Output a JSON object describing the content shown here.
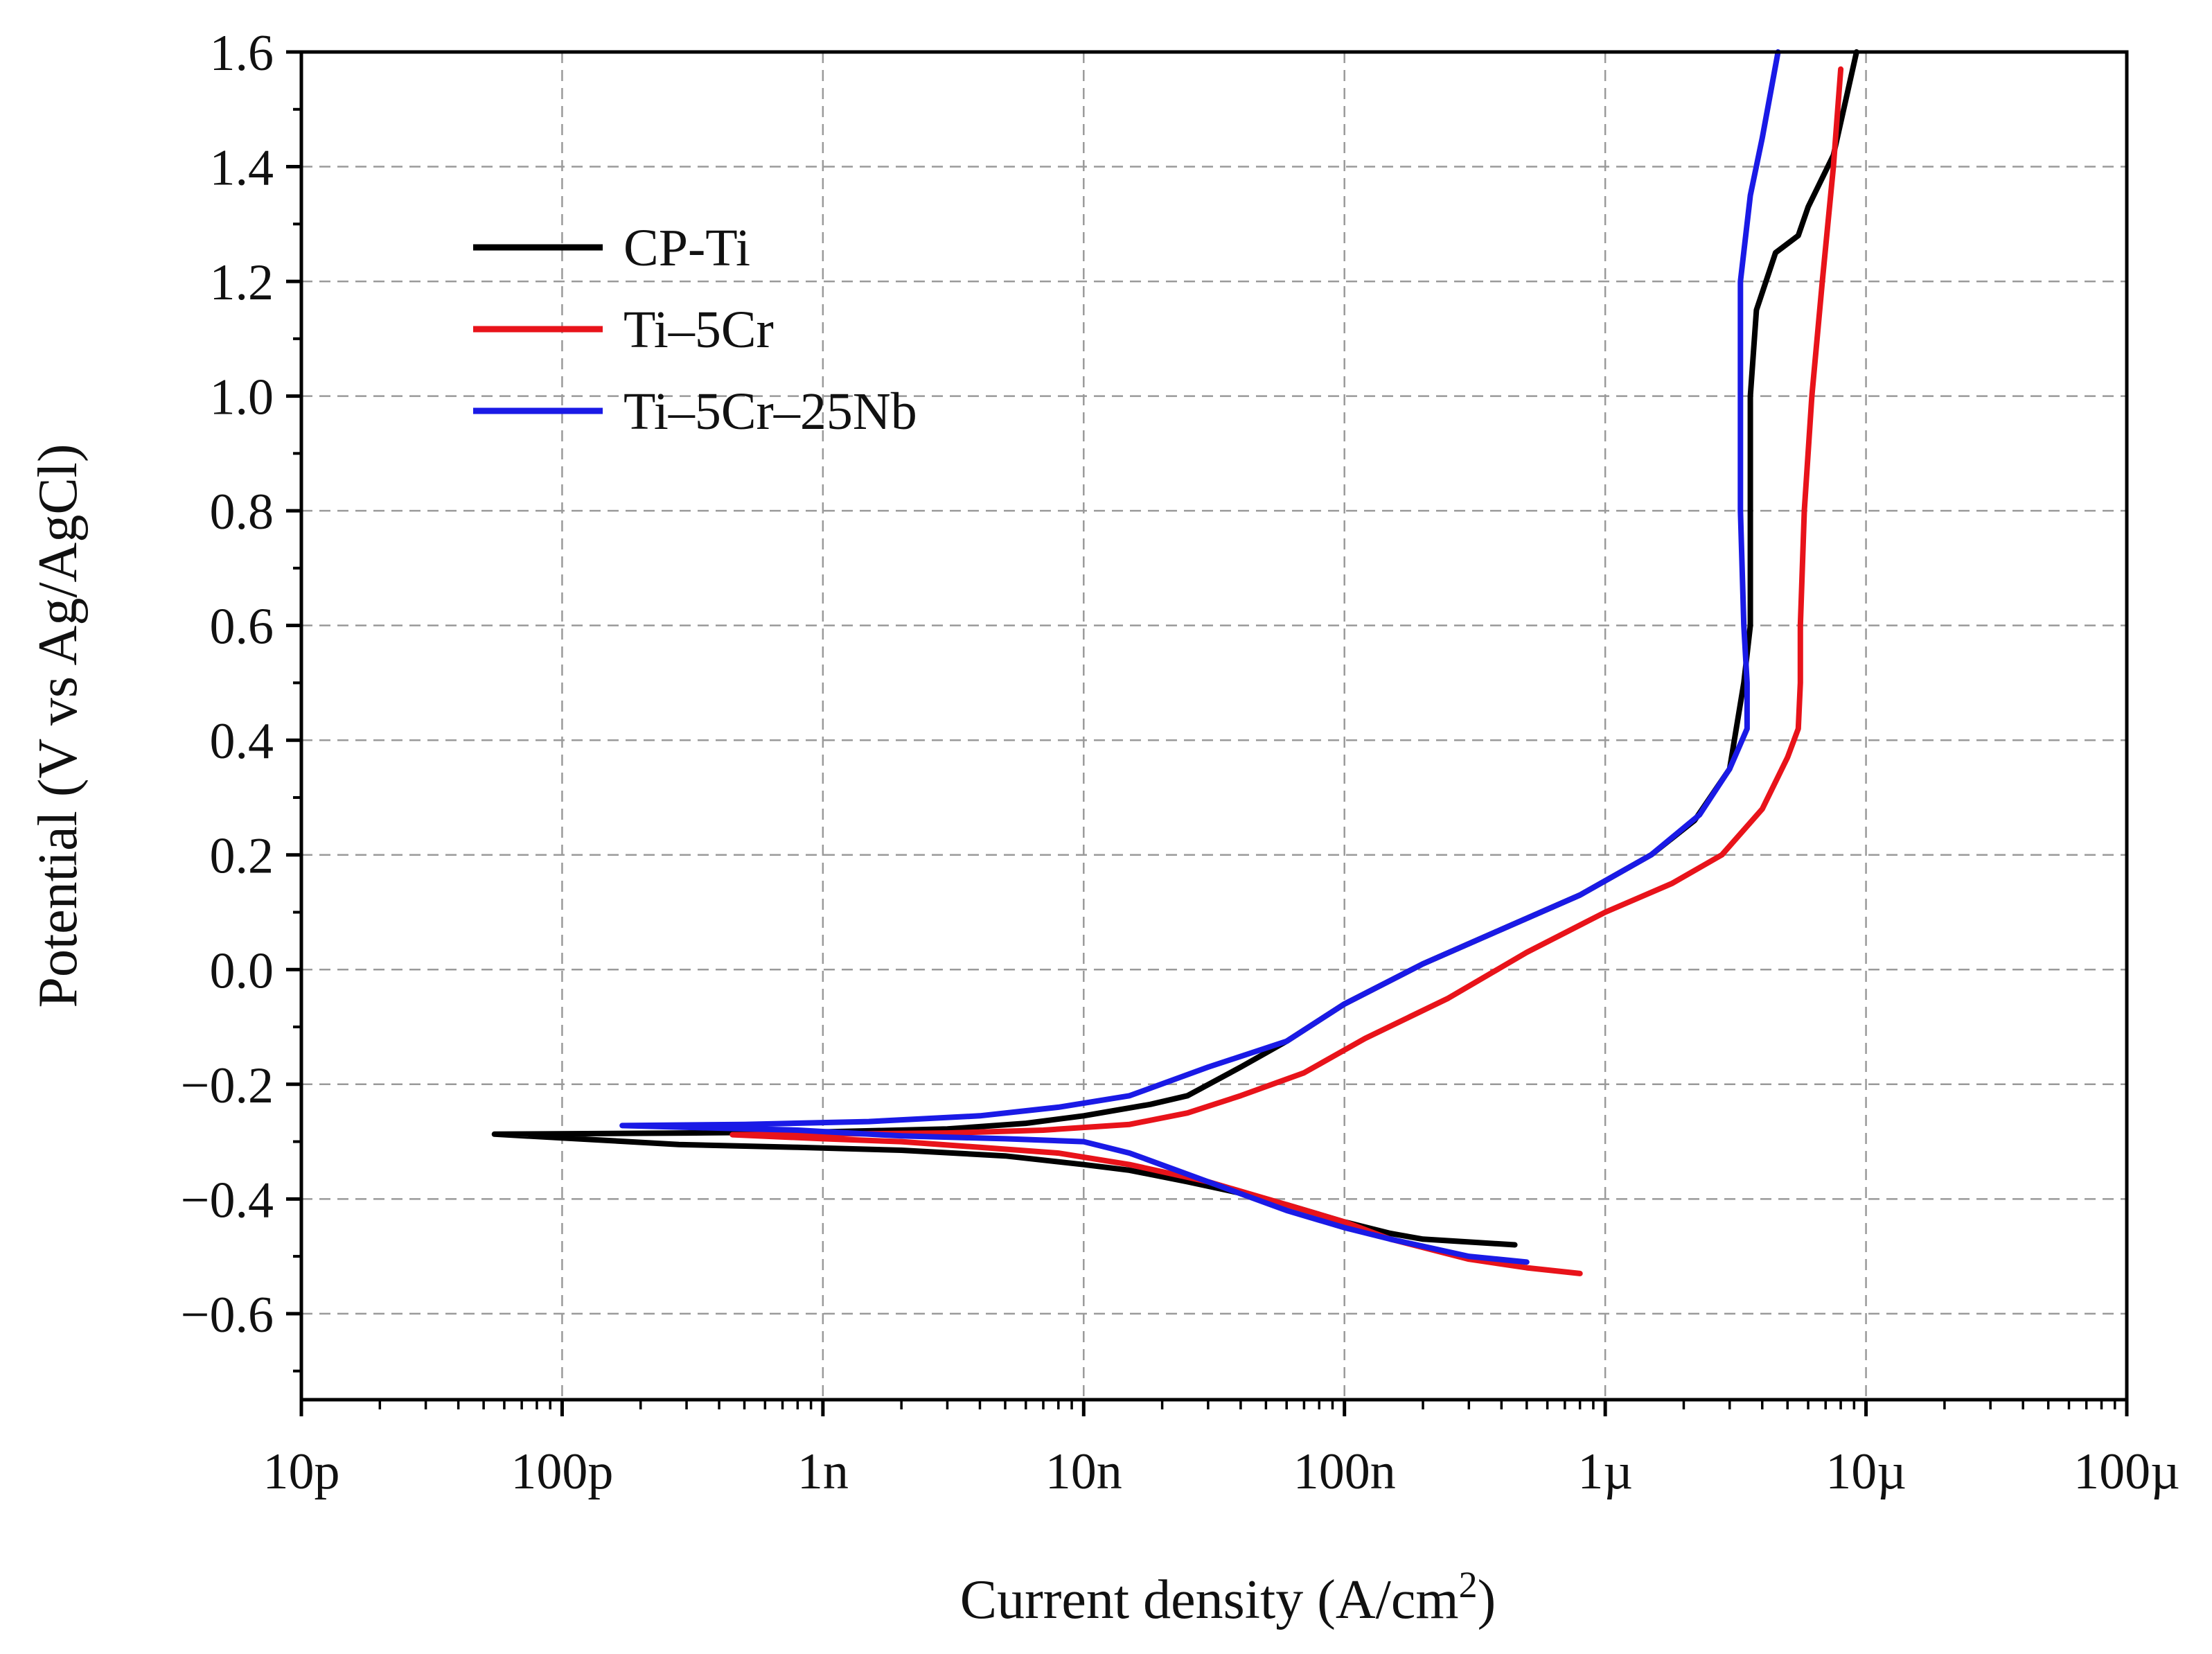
{
  "chart_data": {
    "type": "line",
    "title": "",
    "xlabel": "Current density (A/cm",
    "xlabel_sup": "2",
    "xlabel_close": ")",
    "ylabel": "Potential (V vs Ag/AgCl)",
    "xscale": "log",
    "xlim": [
      1e-11,
      0.0001
    ],
    "ylim": [
      -0.75,
      1.6
    ],
    "grid": true,
    "legend_position": "top-left",
    "x_ticks": [
      {
        "value": 1e-11,
        "label": "10p"
      },
      {
        "value": 1e-10,
        "label": "100p"
      },
      {
        "value": 1e-09,
        "label": "1n"
      },
      {
        "value": 1e-08,
        "label": "10n"
      },
      {
        "value": 1e-07,
        "label": "100n"
      },
      {
        "value": 1e-06,
        "label": "1µ"
      },
      {
        "value": 1e-05,
        "label": "10µ"
      },
      {
        "value": 0.0001,
        "label": "100µ"
      }
    ],
    "y_ticks": [
      {
        "value": 1.6,
        "label": "1.6"
      },
      {
        "value": 1.4,
        "label": "1.4"
      },
      {
        "value": 1.2,
        "label": "1.2"
      },
      {
        "value": 1.0,
        "label": "1.0"
      },
      {
        "value": 0.8,
        "label": "0.8"
      },
      {
        "value": 0.6,
        "label": "0.6"
      },
      {
        "value": 0.4,
        "label": "0.4"
      },
      {
        "value": 0.2,
        "label": "0.2"
      },
      {
        "value": 0.0,
        "label": "0.0"
      },
      {
        "value": -0.2,
        "label": "−0.2"
      },
      {
        "value": -0.4,
        "label": "−0.4"
      },
      {
        "value": -0.6,
        "label": "−0.6"
      }
    ],
    "series": [
      {
        "name": "CP-Ti",
        "color": "#000000",
        "points": [
          [
            4.5e-07,
            -0.48
          ],
          [
            3e-07,
            -0.475
          ],
          [
            2e-07,
            -0.47
          ],
          [
            1.5e-07,
            -0.46
          ],
          [
            1e-07,
            -0.44
          ],
          [
            6e-08,
            -0.41
          ],
          [
            4e-08,
            -0.39
          ],
          [
            2.5e-08,
            -0.37
          ],
          [
            1.5e-08,
            -0.35
          ],
          [
            1e-08,
            -0.34
          ],
          [
            5e-09,
            -0.325
          ],
          [
            2e-09,
            -0.315
          ],
          [
            8e-10,
            -0.31
          ],
          [
            2.8e-10,
            -0.305
          ],
          [
            5.5e-11,
            -0.287
          ],
          [
            3e-10,
            -0.285
          ],
          [
            1e-09,
            -0.283
          ],
          [
            3e-09,
            -0.278
          ],
          [
            6e-09,
            -0.268
          ],
          [
            1e-08,
            -0.255
          ],
          [
            1.8e-08,
            -0.235
          ],
          [
            2.5e-08,
            -0.22
          ],
          [
            4e-08,
            -0.17
          ],
          [
            6e-08,
            -0.125
          ],
          [
            1e-07,
            -0.06
          ],
          [
            2e-07,
            0.01
          ],
          [
            4e-07,
            0.07
          ],
          [
            8e-07,
            0.13
          ],
          [
            1.5e-06,
            0.2
          ],
          [
            2.2e-06,
            0.26
          ],
          [
            3e-06,
            0.35
          ],
          [
            3.4e-06,
            0.5
          ],
          [
            3.6e-06,
            0.6
          ],
          [
            3.6e-06,
            0.8
          ],
          [
            3.6e-06,
            1.0
          ],
          [
            3.8e-06,
            1.15
          ],
          [
            4.5e-06,
            1.25
          ],
          [
            5.5e-06,
            1.28
          ],
          [
            6e-06,
            1.33
          ],
          [
            7.5e-06,
            1.42
          ],
          [
            9.2e-06,
            1.6
          ]
        ]
      },
      {
        "name": "Ti–5Cr",
        "color": "#e8131a",
        "points": [
          [
            8e-07,
            -0.53
          ],
          [
            5e-07,
            -0.52
          ],
          [
            3e-07,
            -0.505
          ],
          [
            1.5e-07,
            -0.47
          ],
          [
            1e-07,
            -0.44
          ],
          [
            6e-08,
            -0.41
          ],
          [
            3e-08,
            -0.37
          ],
          [
            1.5e-08,
            -0.34
          ],
          [
            8e-09,
            -0.32
          ],
          [
            4e-09,
            -0.31
          ],
          [
            2e-09,
            -0.3
          ],
          [
            1e-09,
            -0.295
          ],
          [
            4.5e-10,
            -0.288
          ],
          [
            1e-09,
            -0.287
          ],
          [
            3e-09,
            -0.285
          ],
          [
            7e-09,
            -0.28
          ],
          [
            1.5e-08,
            -0.27
          ],
          [
            2.5e-08,
            -0.25
          ],
          [
            4e-08,
            -0.22
          ],
          [
            7e-08,
            -0.18
          ],
          [
            1.2e-07,
            -0.12
          ],
          [
            2.5e-07,
            -0.05
          ],
          [
            5e-07,
            0.03
          ],
          [
            1e-06,
            0.1
          ],
          [
            1.8e-06,
            0.15
          ],
          [
            2.8e-06,
            0.2
          ],
          [
            4e-06,
            0.28
          ],
          [
            5e-06,
            0.37
          ],
          [
            5.5e-06,
            0.42
          ],
          [
            5.6e-06,
            0.5
          ],
          [
            5.6e-06,
            0.6
          ],
          [
            5.8e-06,
            0.8
          ],
          [
            6.2e-06,
            1.0
          ],
          [
            6.8e-06,
            1.2
          ],
          [
            7.5e-06,
            1.4
          ],
          [
            8e-06,
            1.57
          ]
        ]
      },
      {
        "name": "Ti–5Cr–25Nb",
        "color": "#1a1ae6",
        "points": [
          [
            5e-07,
            -0.51
          ],
          [
            3e-07,
            -0.5
          ],
          [
            1.5e-07,
            -0.47
          ],
          [
            1e-07,
            -0.45
          ],
          [
            6e-08,
            -0.42
          ],
          [
            3e-08,
            -0.37
          ],
          [
            1.5e-08,
            -0.32
          ],
          [
            1e-08,
            -0.3
          ],
          [
            5e-09,
            -0.295
          ],
          [
            2e-09,
            -0.29
          ],
          [
            8e-10,
            -0.28
          ],
          [
            3e-10,
            -0.275
          ],
          [
            1.7e-10,
            -0.272
          ],
          [
            5e-10,
            -0.27
          ],
          [
            1.5e-09,
            -0.265
          ],
          [
            4e-09,
            -0.255
          ],
          [
            8e-09,
            -0.24
          ],
          [
            1.5e-08,
            -0.22
          ],
          [
            3e-08,
            -0.17
          ],
          [
            6e-08,
            -0.125
          ],
          [
            1e-07,
            -0.06
          ],
          [
            2e-07,
            0.01
          ],
          [
            4e-07,
            0.07
          ],
          [
            8e-07,
            0.13
          ],
          [
            1.5e-06,
            0.2
          ],
          [
            2.3e-06,
            0.27
          ],
          [
            3e-06,
            0.35
          ],
          [
            3.5e-06,
            0.42
          ],
          [
            3.5e-06,
            0.5
          ],
          [
            3.4e-06,
            0.6
          ],
          [
            3.3e-06,
            0.8
          ],
          [
            3.3e-06,
            1.0
          ],
          [
            3.3e-06,
            1.2
          ],
          [
            3.6e-06,
            1.35
          ],
          [
            4e-06,
            1.45
          ],
          [
            4.6e-06,
            1.6
          ]
        ]
      }
    ]
  }
}
